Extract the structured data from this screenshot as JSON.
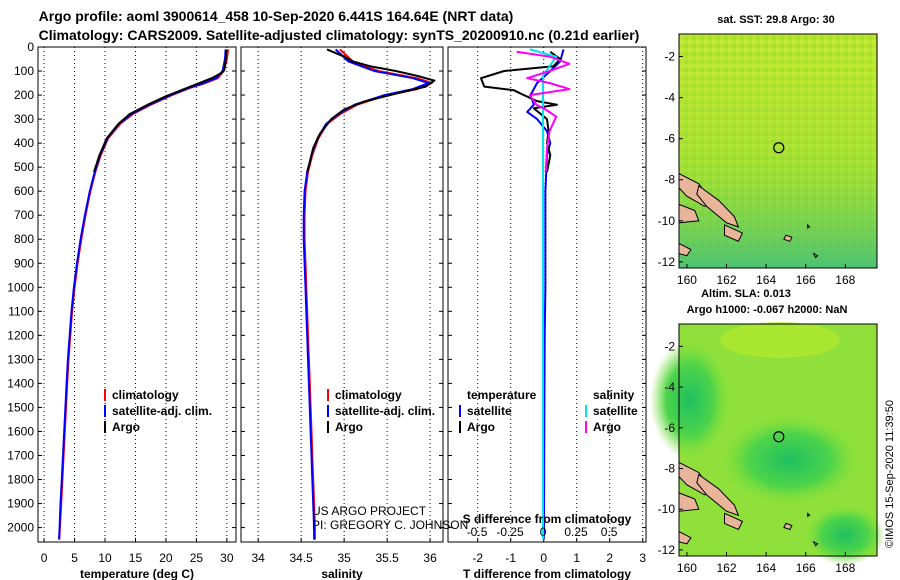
{
  "title_line1": "Argo profile: aoml 3900614_458 10-Sep-2020 6.441S 164.64E (NRT data)",
  "title_line2": "Climatology: CARS2009. Satellite-adjusted climatology: synTS_20200910.nc (0.21d earlier)",
  "credits_line1": "US ARGO PROJECT",
  "credits_line2": "PI: GREGORY C. JOHNSON",
  "stamp": "©IMOS 15-Sep-2020 11:39:50",
  "map_sst_title": "sat. SST: 29.8 Argo: 30",
  "map_sla_title1": "Altim. SLA: 0.013",
  "map_sla_title2": "Argo h1000: -0.067 h2000: NaN",
  "colors": {
    "climatology": "#ff0000",
    "satellite": "#0000ff",
    "argo": "#000000",
    "sat_salinity": "#00e5e5",
    "argo_salinity": "#ff00ff"
  },
  "chart_data": [
    {
      "type": "line",
      "xlabel": "temperature (deg C)",
      "ylabel": "",
      "xlim": [
        -1,
        31.5
      ],
      "ylim": [
        2060,
        0
      ],
      "xticks": [
        "0",
        "5",
        "10",
        "15",
        "20",
        "25",
        "30"
      ],
      "yticks": [
        "0",
        "100",
        "200",
        "300",
        "400",
        "500",
        "600",
        "700",
        "800",
        "900",
        "1000",
        "1100",
        "1200",
        "1300",
        "1400",
        "1500",
        "1600",
        "1700",
        "1800",
        "1900",
        "2000"
      ],
      "legend": [
        "climatology",
        "satellite-adj. clim.",
        "Argo"
      ],
      "series": [
        {
          "name": "climatology",
          "values": [
            [
              30.2,
              10
            ],
            [
              30,
              50
            ],
            [
              29.5,
              100
            ],
            [
              28.5,
              130
            ],
            [
              26.5,
              150
            ],
            [
              24,
              170
            ],
            [
              21,
              200
            ],
            [
              17.5,
              240
            ],
            [
              14.5,
              280
            ],
            [
              12.5,
              320
            ],
            [
              10.5,
              380
            ],
            [
              9.3,
              450
            ],
            [
              8.4,
              520
            ],
            [
              7.6,
              600
            ],
            [
              6.8,
              700
            ],
            [
              6.1,
              800
            ],
            [
              5.5,
              900
            ],
            [
              5,
              1000
            ],
            [
              4.6,
              1100
            ],
            [
              4.3,
              1200
            ],
            [
              4,
              1300
            ],
            [
              3.8,
              1400
            ],
            [
              3.6,
              1500
            ],
            [
              3.4,
              1600
            ],
            [
              3.2,
              1700
            ],
            [
              3,
              1800
            ],
            [
              2.8,
              1900
            ],
            [
              2.6,
              2000
            ],
            [
              2.5,
              2050
            ]
          ]
        },
        {
          "name": "satellite-adj. clim.",
          "values": [
            [
              29.8,
              10
            ],
            [
              29.7,
              50
            ],
            [
              29.3,
              100
            ],
            [
              28.2,
              130
            ],
            [
              26.3,
              150
            ],
            [
              23.8,
              170
            ],
            [
              20.8,
              200
            ],
            [
              17.3,
              240
            ],
            [
              14.3,
              280
            ],
            [
              12.3,
              320
            ],
            [
              10.4,
              380
            ],
            [
              9.2,
              450
            ],
            [
              8.3,
              520
            ],
            [
              7.5,
              600
            ],
            [
              6.7,
              700
            ],
            [
              6,
              800
            ],
            [
              5.4,
              900
            ],
            [
              4.9,
              1000
            ],
            [
              4.5,
              1100
            ],
            [
              4.2,
              1200
            ],
            [
              3.9,
              1300
            ],
            [
              3.7,
              1400
            ],
            [
              3.5,
              1500
            ],
            [
              3.3,
              1600
            ],
            [
              3.1,
              1700
            ],
            [
              2.9,
              1800
            ],
            [
              2.7,
              1900
            ],
            [
              2.55,
              2000
            ],
            [
              2.45,
              2050
            ]
          ]
        },
        {
          "name": "Argo",
          "values": [
            [
              29.9,
              10
            ],
            [
              29.8,
              60
            ],
            [
              29.6,
              95
            ],
            [
              29,
              110
            ],
            [
              27.5,
              130
            ],
            [
              25.5,
              150
            ],
            [
              23,
              175
            ],
            [
              20,
              205
            ],
            [
              17,
              240
            ],
            [
              14,
              280
            ],
            [
              12.2,
              320
            ],
            [
              10.3,
              380
            ],
            [
              9.1,
              450
            ],
            [
              8.2,
              520
            ]
          ]
        }
      ]
    },
    {
      "type": "line",
      "xlabel": "salinity",
      "ylabel": "",
      "xlim": [
        33.8,
        36.15
      ],
      "ylim": [
        2060,
        0
      ],
      "xticks": [
        "34",
        "34.5",
        "35",
        "35.5",
        "36"
      ],
      "legend": [
        "climatology",
        "satellite-adj. clim.",
        "Argo"
      ],
      "series": [
        {
          "name": "climatology",
          "values": [
            [
              34.95,
              10
            ],
            [
              35.1,
              60
            ],
            [
              35.4,
              100
            ],
            [
              35.85,
              130
            ],
            [
              36.02,
              150
            ],
            [
              35.85,
              175
            ],
            [
              35.5,
              200
            ],
            [
              35.15,
              240
            ],
            [
              34.95,
              280
            ],
            [
              34.8,
              320
            ],
            [
              34.7,
              380
            ],
            [
              34.63,
              450
            ],
            [
              34.58,
              520
            ],
            [
              34.55,
              600
            ],
            [
              34.54,
              700
            ],
            [
              34.54,
              800
            ],
            [
              34.55,
              900
            ],
            [
              34.56,
              1000
            ],
            [
              34.57,
              1100
            ],
            [
              34.58,
              1200
            ],
            [
              34.59,
              1300
            ],
            [
              34.6,
              1400
            ],
            [
              34.61,
              1500
            ],
            [
              34.62,
              1600
            ],
            [
              34.63,
              1700
            ],
            [
              34.64,
              1800
            ],
            [
              34.65,
              1900
            ],
            [
              34.66,
              2000
            ],
            [
              34.66,
              2050
            ]
          ]
        },
        {
          "name": "satellite-adj. clim.",
          "values": [
            [
              34.9,
              10
            ],
            [
              35.05,
              60
            ],
            [
              35.35,
              100
            ],
            [
              35.8,
              130
            ],
            [
              35.98,
              150
            ],
            [
              35.8,
              175
            ],
            [
              35.47,
              200
            ],
            [
              35.12,
              240
            ],
            [
              34.93,
              280
            ],
            [
              34.79,
              320
            ],
            [
              34.69,
              380
            ],
            [
              34.62,
              450
            ],
            [
              34.57,
              520
            ],
            [
              34.54,
              600
            ],
            [
              34.53,
              700
            ],
            [
              34.53,
              800
            ],
            [
              34.54,
              900
            ],
            [
              34.55,
              1000
            ],
            [
              34.56,
              1100
            ],
            [
              34.57,
              1200
            ],
            [
              34.58,
              1300
            ],
            [
              34.59,
              1400
            ],
            [
              34.6,
              1500
            ],
            [
              34.61,
              1600
            ],
            [
              34.62,
              1700
            ],
            [
              34.63,
              1800
            ],
            [
              34.64,
              1900
            ],
            [
              34.65,
              2000
            ],
            [
              34.65,
              2050
            ]
          ]
        },
        {
          "name": "Argo",
          "values": [
            [
              34.8,
              10
            ],
            [
              35.0,
              40
            ],
            [
              35.1,
              60
            ],
            [
              35.3,
              80
            ],
            [
              35.6,
              100
            ],
            [
              35.85,
              120
            ],
            [
              36.05,
              140
            ],
            [
              35.95,
              165
            ],
            [
              35.65,
              190
            ],
            [
              35.25,
              225
            ],
            [
              35.0,
              260
            ],
            [
              34.85,
              300
            ],
            [
              34.72,
              360
            ],
            [
              34.64,
              420
            ],
            [
              34.6,
              480
            ],
            [
              34.57,
              520
            ]
          ]
        }
      ]
    },
    {
      "type": "line",
      "xlabel": "T difference from climatology",
      "ylabel": "",
      "xlim": [
        -2.9,
        3.1
      ],
      "ylim": [
        2060,
        0
      ],
      "xticks": [
        "-2",
        "-1",
        "0",
        "1",
        "2",
        "3"
      ],
      "secondary_xlabel": "S difference from climatology",
      "secondary_xlim": [
        -0.72,
        0.78
      ],
      "secondary_xticks": [
        "-0.5",
        "-0.25",
        "0",
        "0.25",
        "0.5"
      ],
      "legend_left_title": "temperature",
      "legend_right_title": "salinity",
      "legend": [
        "satellite",
        "Argo",
        "satellite",
        "Argo"
      ],
      "series": [
        {
          "name": "satellite",
          "values": [
            [
              0.6,
              10
            ],
            [
              0.5,
              60
            ],
            [
              0.2,
              100
            ],
            [
              -0.2,
              150
            ],
            [
              -0.4,
              200
            ],
            [
              -0.3,
              240
            ],
            [
              -0.5,
              270
            ],
            [
              -0.2,
              300
            ],
            [
              0.1,
              350
            ],
            [
              0.2,
              400
            ],
            [
              0.1,
              450
            ],
            [
              0.05,
              600
            ],
            [
              0.05,
              800
            ],
            [
              0.05,
              1000
            ],
            [
              0.03,
              1200
            ],
            [
              0.02,
              1500
            ],
            [
              0.01,
              2000
            ],
            [
              0.0,
              2050
            ]
          ]
        },
        {
          "name": "Argo",
          "values": [
            [
              0.2,
              20
            ],
            [
              0.5,
              50
            ],
            [
              0.3,
              80
            ],
            [
              -1.2,
              100
            ],
            [
              -1.9,
              130
            ],
            [
              -1.8,
              165
            ],
            [
              -0.9,
              180
            ],
            [
              -0.6,
              200
            ],
            [
              -0.2,
              225
            ],
            [
              0.4,
              240
            ],
            [
              -0.3,
              255
            ],
            [
              0.1,
              300
            ],
            [
              0.15,
              350
            ],
            [
              0.1,
              400
            ],
            [
              0.2,
              450
            ],
            [
              0.1,
              520
            ]
          ]
        },
        {
          "name": "satellite",
          "axis": "salinity",
          "values": [
            [
              -0.1,
              10
            ],
            [
              0.1,
              40
            ],
            [
              0.05,
              80
            ],
            [
              0.0,
              120
            ],
            [
              0.0,
              200
            ],
            [
              0.0,
              400
            ],
            [
              0.0,
              800
            ],
            [
              0.0,
              1200
            ],
            [
              0.0,
              1600
            ],
            [
              0.0,
              2050
            ]
          ]
        },
        {
          "name": "Argo",
          "axis": "salinity",
          "values": [
            [
              -0.2,
              20
            ],
            [
              0.05,
              40
            ],
            [
              0.2,
              70
            ],
            [
              0.05,
              100
            ],
            [
              -0.12,
              130
            ],
            [
              0.05,
              150
            ],
            [
              0.2,
              175
            ],
            [
              -0.1,
              200
            ],
            [
              -0.05,
              240
            ],
            [
              0.02,
              260
            ],
            [
              0.1,
              290
            ],
            [
              0.05,
              350
            ],
            [
              0.03,
              420
            ],
            [
              0.02,
              520
            ]
          ]
        }
      ]
    },
    {
      "type": "heatmap",
      "title": "sat. SST: 29.8 Argo: 30",
      "xlim": [
        159.6,
        169.6
      ],
      "ylim": [
        -12.3,
        -0.9
      ],
      "xticks": [
        "160",
        "162",
        "164",
        "166",
        "168"
      ],
      "yticks": [
        "-2",
        "-4",
        "-6",
        "-8",
        "-10",
        "-12"
      ],
      "profile_location": [
        164.64,
        -6.441
      ]
    },
    {
      "type": "heatmap",
      "title": "Altim. SLA: 0.013",
      "xlim": [
        159.6,
        169.6
      ],
      "ylim": [
        -12.3,
        -0.9
      ],
      "xticks": [
        "160",
        "162",
        "164",
        "166",
        "168"
      ],
      "yticks": [
        "-2",
        "-4",
        "-6",
        "-8",
        "-10",
        "-12"
      ],
      "profile_location": [
        164.64,
        -6.441
      ]
    }
  ]
}
